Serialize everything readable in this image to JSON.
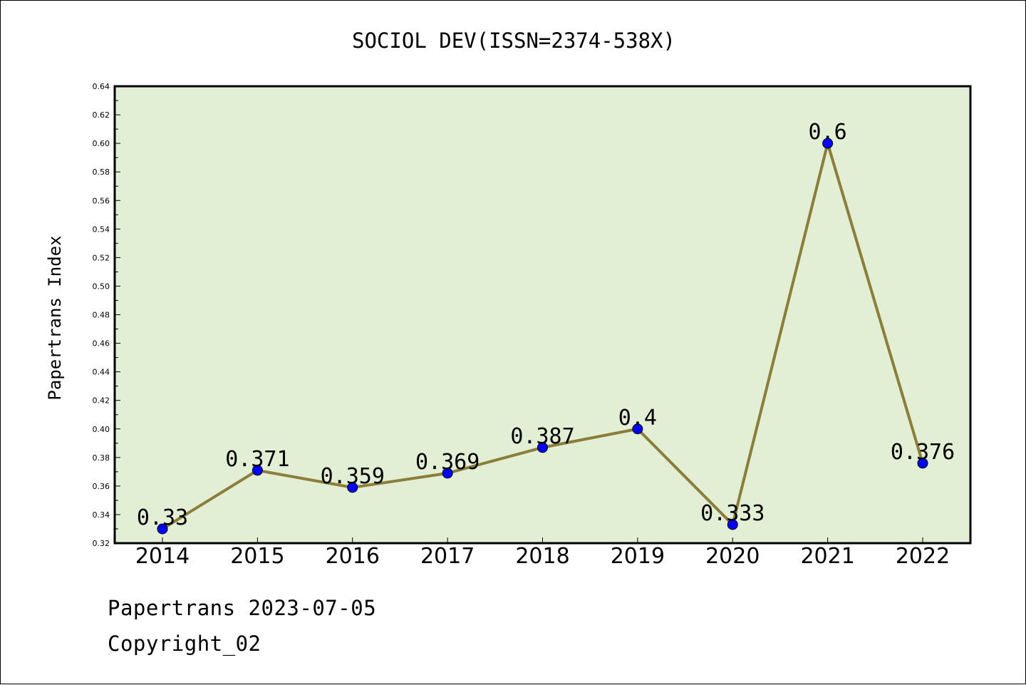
{
  "chart_data": {
    "type": "line",
    "title": "SOCIOL DEV(ISSN=2374-538X)",
    "xlabel": "",
    "ylabel": "Papertrans Index",
    "categories": [
      "2014",
      "2015",
      "2016",
      "2017",
      "2018",
      "2019",
      "2020",
      "2021",
      "2022"
    ],
    "series": [
      {
        "values": [
          0.33,
          0.371,
          0.359,
          0.369,
          0.387,
          0.4,
          0.333,
          0.6,
          0.376
        ],
        "labels": [
          "0.33",
          "0.371",
          "0.359",
          "0.369",
          "0.387",
          "0.4",
          "0.333",
          "0.6",
          "0.376"
        ],
        "line_color": "#8b7d3a",
        "marker_color": "#0000ff"
      }
    ],
    "ylim": [
      0.32,
      0.64
    ],
    "yticks": [
      "0.32",
      "0.34",
      "0.36",
      "0.38",
      "0.40",
      "0.42",
      "0.44",
      "0.46",
      "0.48",
      "0.50",
      "0.52",
      "0.54",
      "0.56",
      "0.58",
      "0.60",
      "0.62",
      "0.64"
    ],
    "grid": false,
    "plot_background": "#e2efd5"
  },
  "footer": {
    "date_line": "Papertrans 2023-07-05",
    "copyright": "Copyright_02"
  }
}
